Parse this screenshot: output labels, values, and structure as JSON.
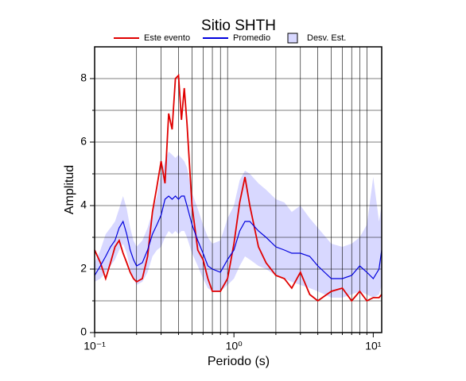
{
  "chart_data": {
    "type": "line",
    "title": "Sitio SHTH",
    "xlabel": "Periodo (s)",
    "ylabel": "Amplitud",
    "xscale": "log",
    "grid": true,
    "legend": "top",
    "x": [
      0.1,
      0.11,
      0.12,
      0.13,
      0.14,
      0.15,
      0.16,
      0.17,
      0.18,
      0.19,
      0.2,
      0.22,
      0.24,
      0.26,
      0.28,
      0.3,
      0.32,
      0.34,
      0.36,
      0.38,
      0.4,
      0.42,
      0.44,
      0.46,
      0.5,
      0.55,
      0.6,
      0.65,
      0.7,
      0.8,
      0.9,
      1.0,
      1.1,
      1.2,
      1.3,
      1.5,
      1.7,
      2.0,
      2.3,
      2.6,
      3.0,
      3.5,
      4.0,
      5.0,
      6.0,
      7.0,
      8.0,
      9.0,
      10,
      11,
      11.5
    ],
    "series": [
      {
        "name": "Este evento",
        "color": "#e00000",
        "values": [
          2.6,
          2.2,
          1.7,
          2.2,
          2.7,
          2.9,
          2.5,
          2.2,
          1.9,
          1.7,
          1.6,
          1.7,
          2.4,
          3.8,
          4.6,
          5.4,
          4.7,
          6.9,
          6.4,
          8.0,
          8.1,
          6.7,
          7.7,
          6.6,
          4.0,
          2.6,
          2.3,
          1.7,
          1.3,
          1.3,
          1.7,
          2.8,
          4.1,
          4.9,
          4.0,
          2.7,
          2.2,
          1.8,
          1.7,
          1.4,
          1.9,
          1.2,
          1.0,
          1.3,
          1.4,
          1.0,
          1.3,
          1.0,
          1.1,
          1.1,
          1.2
        ]
      },
      {
        "name": "Promedio",
        "color": "#0000dd",
        "values": [
          1.8,
          2.1,
          2.4,
          2.7,
          2.9,
          3.3,
          3.5,
          3.1,
          2.6,
          2.3,
          2.1,
          2.2,
          2.6,
          3.1,
          3.4,
          3.7,
          4.2,
          4.3,
          4.2,
          4.3,
          4.2,
          4.3,
          4.3,
          4.0,
          3.4,
          2.9,
          2.5,
          2.1,
          2.0,
          1.9,
          2.3,
          2.6,
          3.2,
          3.5,
          3.5,
          3.2,
          3.0,
          2.7,
          2.6,
          2.5,
          2.5,
          2.4,
          2.1,
          1.7,
          1.7,
          1.8,
          2.1,
          1.9,
          1.7,
          2.0,
          2.6
        ]
      },
      {
        "name": "Desv. Est.",
        "color": "#d8d8ff",
        "band": true,
        "upper": [
          2.2,
          2.6,
          3.1,
          3.3,
          3.5,
          3.9,
          4.3,
          3.9,
          3.3,
          2.9,
          2.7,
          2.9,
          3.3,
          3.8,
          4.3,
          5.0,
          5.4,
          5.7,
          5.6,
          5.5,
          5.6,
          5.5,
          5.4,
          5.2,
          4.4,
          3.9,
          3.4,
          3.0,
          2.8,
          2.9,
          3.6,
          4.0,
          4.8,
          5.1,
          5.0,
          4.7,
          4.5,
          4.2,
          4.1,
          3.8,
          4.0,
          3.6,
          3.3,
          2.8,
          2.7,
          2.8,
          3.0,
          3.4,
          4.9,
          3.5,
          4.0
        ],
        "lower": [
          1.6,
          1.7,
          1.9,
          2.1,
          2.3,
          2.6,
          2.8,
          2.5,
          2.0,
          1.7,
          1.5,
          1.6,
          1.9,
          2.4,
          2.6,
          2.7,
          3.0,
          3.2,
          3.1,
          3.2,
          3.1,
          3.2,
          3.2,
          3.0,
          2.5,
          2.1,
          1.7,
          1.4,
          1.3,
          1.3,
          1.5,
          1.7,
          2.1,
          2.4,
          2.3,
          2.1,
          2.0,
          1.8,
          1.7,
          1.6,
          1.5,
          1.4,
          1.3,
          1.1,
          1.1,
          1.2,
          1.3,
          1.2,
          1.1,
          1.2,
          1.5
        ]
      }
    ],
    "xlim": [
      0.1,
      11.5
    ],
    "ylim": [
      0,
      9
    ],
    "xticks": [
      {
        "value": 0.1,
        "label": "10⁻¹"
      },
      {
        "value": 1,
        "label": "10⁰"
      },
      {
        "value": 10,
        "label": "10¹"
      }
    ],
    "xminor": [
      0.2,
      0.3,
      0.4,
      0.5,
      0.6,
      0.7,
      0.8,
      0.9,
      2,
      3,
      4,
      5,
      6,
      7,
      8,
      9
    ],
    "yticks": [
      0,
      2,
      4,
      6,
      8
    ],
    "yminor": [
      1,
      3,
      5,
      7
    ]
  }
}
